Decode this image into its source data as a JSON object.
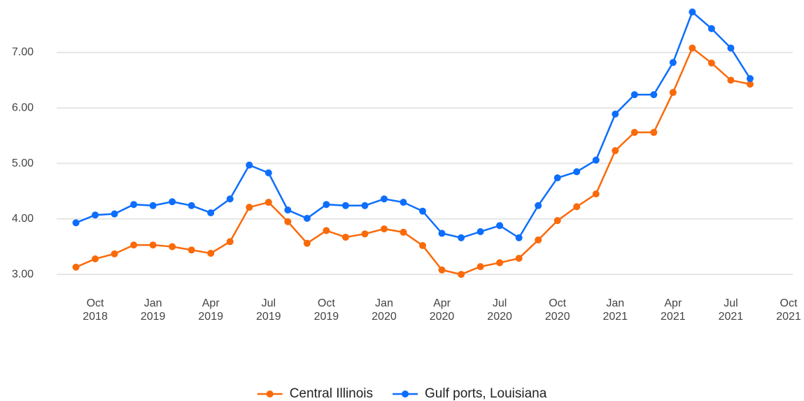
{
  "chart_data": {
    "type": "line",
    "x": [
      "2018-09",
      "2018-10",
      "2018-11",
      "2018-12",
      "2019-01",
      "2019-02",
      "2019-03",
      "2019-04",
      "2019-05",
      "2019-06",
      "2019-07",
      "2019-08",
      "2019-09",
      "2019-10",
      "2019-11",
      "2019-12",
      "2020-01",
      "2020-02",
      "2020-03",
      "2020-04",
      "2020-05",
      "2020-06",
      "2020-07",
      "2020-08",
      "2020-09",
      "2020-10",
      "2020-11",
      "2020-12",
      "2021-01",
      "2021-02",
      "2021-03",
      "2021-04",
      "2021-05",
      "2021-06",
      "2021-07",
      "2021-08"
    ],
    "series": [
      {
        "name": "Central Illinois",
        "color": "#fa6a0a",
        "values": [
          3.13,
          3.28,
          3.37,
          3.53,
          3.53,
          3.5,
          3.44,
          3.38,
          3.59,
          4.21,
          4.3,
          3.95,
          3.56,
          3.79,
          3.67,
          3.73,
          3.82,
          3.76,
          3.52,
          3.08,
          3.0,
          3.14,
          3.21,
          3.29,
          3.62,
          3.97,
          4.22,
          4.45,
          5.23,
          5.56,
          5.56,
          6.28,
          7.08,
          6.81,
          6.5,
          6.43
        ]
      },
      {
        "name": "Gulf ports, Louisiana",
        "color": "#0d6efd",
        "values": [
          3.93,
          4.07,
          4.09,
          4.26,
          4.24,
          4.31,
          4.24,
          4.11,
          4.36,
          4.97,
          4.83,
          4.16,
          4.01,
          4.26,
          4.24,
          4.24,
          4.36,
          4.3,
          4.14,
          3.74,
          3.66,
          3.77,
          3.88,
          3.66,
          4.24,
          4.74,
          4.85,
          5.06,
          5.89,
          6.24,
          6.24,
          6.82,
          7.73,
          7.43,
          7.08,
          6.53
        ]
      }
    ],
    "xlim": [
      "2018-08",
      "2021-10"
    ],
    "xticks": [
      {
        "value": "2018-10",
        "label": [
          "Oct",
          "2018"
        ]
      },
      {
        "value": "2019-01",
        "label": [
          "Jan",
          "2019"
        ]
      },
      {
        "value": "2019-04",
        "label": [
          "Apr",
          "2019"
        ]
      },
      {
        "value": "2019-07",
        "label": [
          "Jul",
          "2019"
        ]
      },
      {
        "value": "2019-10",
        "label": [
          "Oct",
          "2019"
        ]
      },
      {
        "value": "2020-01",
        "label": [
          "Jan",
          "2020"
        ]
      },
      {
        "value": "2020-04",
        "label": [
          "Apr",
          "2020"
        ]
      },
      {
        "value": "2020-07",
        "label": [
          "Jul",
          "2020"
        ]
      },
      {
        "value": "2020-10",
        "label": [
          "Oct",
          "2020"
        ]
      },
      {
        "value": "2021-01",
        "label": [
          "Jan",
          "2021"
        ]
      },
      {
        "value": "2021-04",
        "label": [
          "Apr",
          "2021"
        ]
      },
      {
        "value": "2021-07",
        "label": [
          "Jul",
          "2021"
        ]
      },
      {
        "value": "2021-10",
        "label": [
          "Oct",
          "2021"
        ]
      }
    ],
    "ylim": [
      2.9,
      7.8
    ],
    "yticks": [
      {
        "value": 3,
        "label": "3.00"
      },
      {
        "value": 4,
        "label": "4.00"
      },
      {
        "value": 5,
        "label": "5.00"
      },
      {
        "value": 6,
        "label": "6.00"
      },
      {
        "value": 7,
        "label": "7.00"
      }
    ],
    "grid": true,
    "legend": "bottom"
  }
}
